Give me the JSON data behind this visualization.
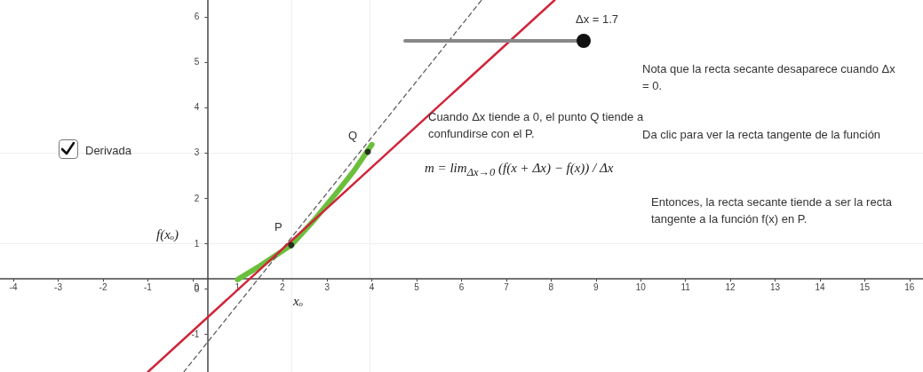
{
  "chart_data": {
    "type": "line",
    "xlim": [
      -4.3,
      16.3
    ],
    "ylim": [
      -1.84,
      6.37
    ],
    "xticks": [
      -4,
      -3,
      -2,
      -1,
      0,
      1,
      2,
      3,
      4,
      5,
      6,
      7,
      8,
      9,
      10,
      11,
      12,
      13,
      14,
      15,
      16
    ],
    "yticks": [
      -1,
      0,
      1,
      2,
      3,
      4,
      5,
      6
    ],
    "grid": false,
    "series": [
      {
        "color": "#6cbf3c",
        "marker": "none",
        "line_style": "solid",
        "x": [
          1.0,
          1.5,
          2.2,
          2.7,
          3.2,
          3.6,
          4.0
        ],
        "values": [
          0.2,
          0.5,
          0.96,
          1.5,
          2.1,
          2.6,
          3.18
        ]
      },
      {
        "color": "#555555",
        "marker": "none",
        "line_style": "dashed",
        "x": [
          -0.2,
          6.45
        ],
        "values": [
          -1.84,
          6.37
        ]
      },
      {
        "color": "#d0253a",
        "marker": "none",
        "line_style": "solid",
        "x": [
          -1.0,
          8.08
        ],
        "values": [
          -1.84,
          6.37
        ]
      },
      {
        "type": "scatter",
        "color": "#111111",
        "marker": "circle",
        "x": [
          2.2,
          3.91
        ],
        "values": [
          0.96,
          3.02
        ]
      }
    ],
    "ref_lines": [
      {
        "axis": "y",
        "value": 1,
        "color": "#eeeeee"
      },
      {
        "axis": "y",
        "value": 3,
        "color": "#eeeeee"
      },
      {
        "axis": "x",
        "value": 2.2,
        "color": "#eeeeee"
      },
      {
        "axis": "x",
        "value": 3.95,
        "color": "#eeeeee"
      }
    ],
    "annotations": [
      "Δx = 1.7",
      "Nota que la recta secante desaparece cuando Δx = 0.",
      "Cuando Δx tiende a 0, el punto Q tiende a confundirse con el P.",
      "m = lim$_{Δx→0}$ (f(x + Δx) − f(x)) / Δx",
      "Da clic para ver la recta tangente de la función",
      "Entonces, la recta secante tiende a ser la recta tangente a la función f(x) en P.",
      "Derivada",
      "f(xₒ)",
      "P",
      "Q",
      "xₒ"
    ]
  }
}
